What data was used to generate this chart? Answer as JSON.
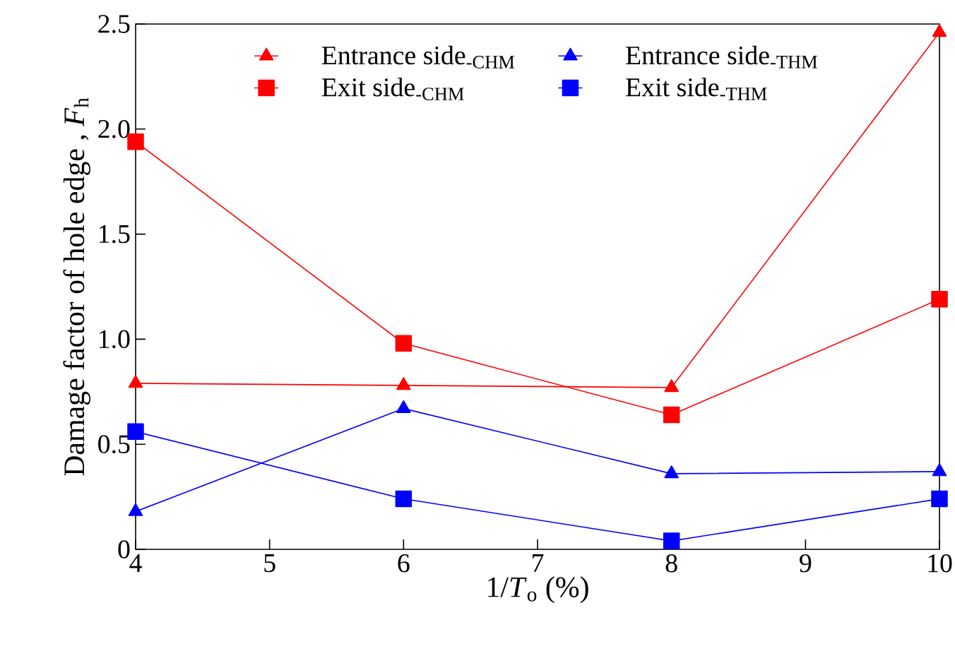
{
  "chart_data": {
    "type": "line",
    "xlabel": "1/*T*$_{o}$ (%)",
    "ylabel": "Damage factor of hole edge , *F*$_{h}$",
    "x": [
      4,
      6,
      8,
      10
    ],
    "series": [
      {
        "name": "Entrance side$_{-CHM}$",
        "color": "#ff0000",
        "marker": "triangle",
        "values": [
          0.79,
          0.78,
          0.77,
          2.46
        ]
      },
      {
        "name": "Entrance side$_{-THM}$",
        "color": "#0000ff",
        "marker": "triangle",
        "values": [
          0.18,
          0.67,
          0.36,
          0.37
        ]
      },
      {
        "name": "Exit side$_{-CHM}$",
        "color": "#ff0000",
        "marker": "square",
        "values": [
          1.94,
          0.98,
          0.64,
          1.19
        ]
      },
      {
        "name": "Exit side$_{-THM}$",
        "color": "#0000ff",
        "marker": "square",
        "values": [
          0.56,
          0.24,
          0.04,
          0.24
        ]
      }
    ],
    "xlim": [
      4,
      10
    ],
    "xticks": [
      4,
      5,
      6,
      7,
      8,
      9,
      10
    ],
    "ylim": [
      0,
      2.5
    ],
    "yticks": [
      0,
      0.5,
      {
        "value": 1,
        "label": "1.0"
      },
      1.5,
      {
        "value": 2,
        "label": "2.0"
      },
      2.5
    ],
    "grid": false,
    "legend": "top",
    "line_style": "solid"
  }
}
